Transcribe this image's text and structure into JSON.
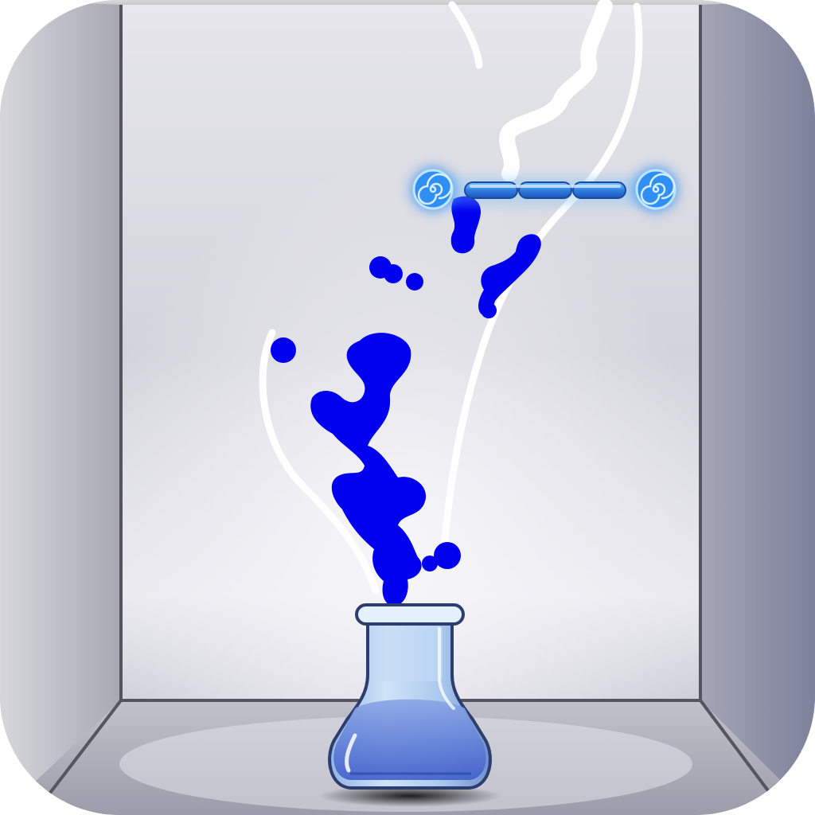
{
  "app": {
    "type": "game-app-icon",
    "scene": "laboratory-box"
  },
  "colors": {
    "wall_light": "#e4e4ea",
    "wall_mid": "#c9c9d2",
    "wall_dark": "#7b7f96",
    "side_wall_left": "#b5b5bf",
    "side_wall_right": "#9e9fb3",
    "floor": "#a9a9b7",
    "water": "#0000ee",
    "drawn_line": "#ffffff",
    "flask_glass": "#b9d6f2",
    "flask_liquid": "#4d6fd8",
    "portal_glow": "#3a9bff",
    "portal_core": "#4fb0ff"
  },
  "icons": {
    "flask": "erlenmeyer-flask-icon",
    "portal": "spiral-portal-icon",
    "bar": "segmented-glass-bar"
  },
  "game": {
    "portal_count": 2,
    "bar_segments": 3,
    "water_blob_count": 12,
    "drawn_line_count": 3
  }
}
